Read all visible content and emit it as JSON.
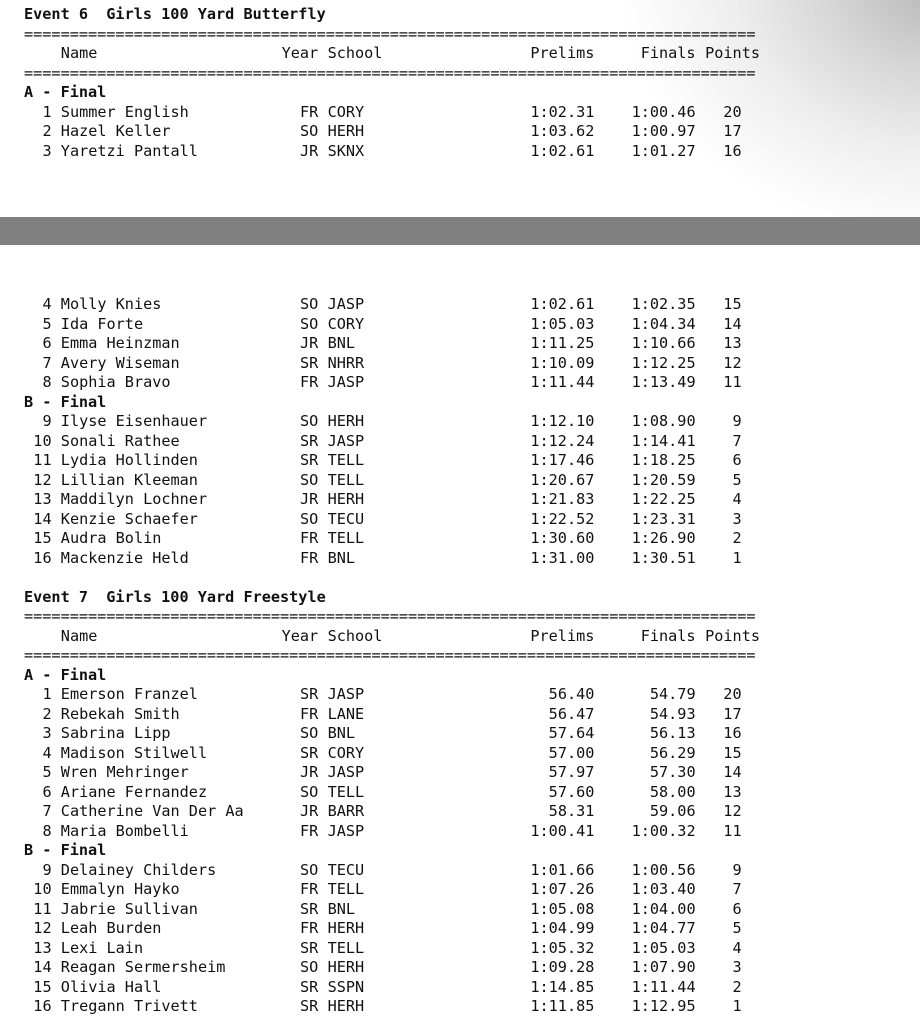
{
  "separator": "================================================================================",
  "header": {
    "name": "Name",
    "year": "Year",
    "school": "School",
    "prelims": "Prelims",
    "finals": "Finals",
    "points": "Points"
  },
  "events": [
    {
      "title": "Event 6  Girls 100 Yard Butterfly",
      "sections": [
        {
          "label": "A - Final",
          "rows": [
            [
              "1",
              "Summer English",
              "FR",
              "CORY",
              "1:02.31",
              "1:00.46",
              "20"
            ],
            [
              "2",
              "Hazel Keller",
              "SO",
              "HERH",
              "1:03.62",
              "1:00.97",
              "17"
            ],
            [
              "3",
              "Yaretzi Pantall",
              "JR",
              "SKNX",
              "1:02.61",
              "1:01.27",
              "16"
            ],
            [
              "4",
              "Molly Knies",
              "SO",
              "JASP",
              "1:02.61",
              "1:02.35",
              "15"
            ],
            [
              "5",
              "Ida Forte",
              "SO",
              "CORY",
              "1:05.03",
              "1:04.34",
              "14"
            ],
            [
              "6",
              "Emma Heinzman",
              "JR",
              "BNL",
              "1:11.25",
              "1:10.66",
              "13"
            ],
            [
              "7",
              "Avery Wiseman",
              "SR",
              "NHRR",
              "1:10.09",
              "1:12.25",
              "12"
            ],
            [
              "8",
              "Sophia Bravo",
              "FR",
              "JASP",
              "1:11.44",
              "1:13.49",
              "11"
            ]
          ]
        },
        {
          "label": "B - Final",
          "rows": [
            [
              "9",
              "Ilyse Eisenhauer",
              "SO",
              "HERH",
              "1:12.10",
              "1:08.90",
              "9"
            ],
            [
              "10",
              "Sonali Rathee",
              "SR",
              "JASP",
              "1:12.24",
              "1:14.41",
              "7"
            ],
            [
              "11",
              "Lydia Hollinden",
              "SR",
              "TELL",
              "1:17.46",
              "1:18.25",
              "6"
            ],
            [
              "12",
              "Lillian Kleeman",
              "SO",
              "TELL",
              "1:20.67",
              "1:20.59",
              "5"
            ],
            [
              "13",
              "Maddilyn Lochner",
              "JR",
              "HERH",
              "1:21.83",
              "1:22.25",
              "4"
            ],
            [
              "14",
              "Kenzie Schaefer",
              "SO",
              "TECU",
              "1:22.52",
              "1:23.31",
              "3"
            ],
            [
              "15",
              "Audra Bolin",
              "FR",
              "TELL",
              "1:30.60",
              "1:26.90",
              "2"
            ],
            [
              "16",
              "Mackenzie Held",
              "FR",
              "BNL",
              "1:31.00",
              "1:30.51",
              "1"
            ]
          ]
        }
      ]
    },
    {
      "title": "Event 7  Girls 100 Yard Freestyle",
      "sections": [
        {
          "label": "A - Final",
          "rows": [
            [
              "1",
              "Emerson Franzel",
              "SR",
              "JASP",
              "56.40",
              "54.79",
              "20"
            ],
            [
              "2",
              "Rebekah Smith",
              "FR",
              "LANE",
              "56.47",
              "54.93",
              "17"
            ],
            [
              "3",
              "Sabrina Lipp",
              "SO",
              "BNL",
              "57.64",
              "56.13",
              "16"
            ],
            [
              "4",
              "Madison Stilwell",
              "SR",
              "CORY",
              "57.00",
              "56.29",
              "15"
            ],
            [
              "5",
              "Wren Mehringer",
              "JR",
              "JASP",
              "57.97",
              "57.30",
              "14"
            ],
            [
              "6",
              "Ariane Fernandez",
              "SO",
              "TELL",
              "57.60",
              "58.00",
              "13"
            ],
            [
              "7",
              "Catherine Van Der Aa",
              "JR",
              "BARR",
              "58.31",
              "59.06",
              "12"
            ],
            [
              "8",
              "Maria Bombelli",
              "FR",
              "JASP",
              "1:00.41",
              "1:00.32",
              "11"
            ]
          ]
        },
        {
          "label": "B - Final",
          "rows": [
            [
              "9",
              "Delainey Childers",
              "SO",
              "TECU",
              "1:01.66",
              "1:00.56",
              "9"
            ],
            [
              "10",
              "Emmalyn Hayko",
              "FR",
              "TELL",
              "1:07.26",
              "1:03.40",
              "7"
            ],
            [
              "11",
              "Jabrie Sullivan",
              "SR",
              "BNL",
              "1:05.08",
              "1:04.00",
              "6"
            ],
            [
              "12",
              "Leah Burden",
              "FR",
              "HERH",
              "1:04.99",
              "1:04.77",
              "5"
            ],
            [
              "13",
              "Lexi Lain",
              "SR",
              "TELL",
              "1:05.32",
              "1:05.03",
              "4"
            ],
            [
              "14",
              "Reagan Sermersheim",
              "SO",
              "HERH",
              "1:09.28",
              "1:07.90",
              "3"
            ],
            [
              "15",
              "Olivia Hall",
              "SR",
              "SSPN",
              "1:14.85",
              "1:11.44",
              "2"
            ],
            [
              "16",
              "Tregann Trivett",
              "SR",
              "HERH",
              "1:11.85",
              "1:12.95",
              "1"
            ]
          ]
        }
      ]
    }
  ]
}
